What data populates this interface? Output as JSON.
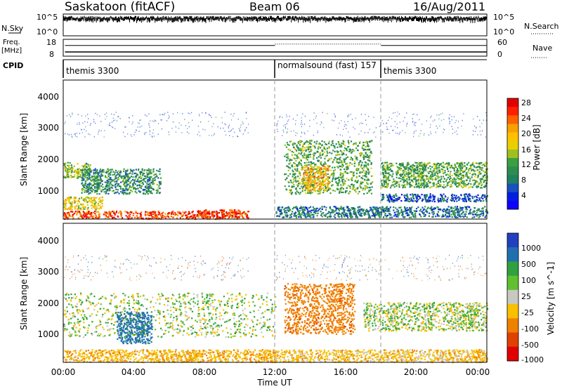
{
  "header": {
    "title": "Saskatoon (fitACF)",
    "beam": "Beam 06",
    "date": "16/Aug/2011"
  },
  "nsky_panel": {
    "left_label": "N.Sky",
    "left_ticks": [
      "10^5",
      "10^0"
    ],
    "right_ticks": [
      "10^5",
      "10^0"
    ],
    "right_label": "N.Search"
  },
  "freq_panel": {
    "label_line1": "Freq.",
    "label_line2": "[MHz]",
    "left_ticks": [
      "18",
      "8"
    ],
    "right_ticks": [
      "60",
      "0"
    ],
    "right_label": "Nave"
  },
  "cpid_panel": {
    "label": "CPID",
    "segments": [
      {
        "start_hour": 0,
        "text": "themis 3300"
      },
      {
        "start_hour": 12,
        "text": "normalsound (fast) 157"
      },
      {
        "start_hour": 18,
        "text": "themis 3300"
      }
    ]
  },
  "power_panel": {
    "ylabel": "Slant Range [km]",
    "yticks": [
      "4000",
      "3000",
      "2000",
      "1000"
    ],
    "colorbar_label": "Power [dB]",
    "colorbar_ticks": [
      "28",
      "24",
      "20",
      "16",
      "12",
      "8",
      "4"
    ],
    "colorbar_colors": [
      "#e00000",
      "#ff2000",
      "#ff6000",
      "#f7a000",
      "#ffc000",
      "#e8d000",
      "#a0c020",
      "#3aa040",
      "#2e8c50",
      "#208060",
      "#1a50c0",
      "#0020e0",
      "#1000ff"
    ]
  },
  "velocity_panel": {
    "ylabel": "Slant Range [km]",
    "yticks": [
      "4000",
      "3000",
      "2000",
      "1000"
    ],
    "colorbar_label": "Velocity [m s^-1]",
    "colorbar_ticks": [
      "1000",
      "500",
      "100",
      "25",
      "-25",
      "-100",
      "-500",
      "-1000"
    ],
    "colorbar_colors": [
      "#2040c0",
      "#2070b0",
      "#30a040",
      "#60c030",
      "#c8c8c0",
      "#f8c000",
      "#f08000",
      "#e04000",
      "#e00000"
    ]
  },
  "time_axis": {
    "xlabel": "Time UT",
    "ticks": [
      "00:00",
      "04:00",
      "08:00",
      "12:00",
      "16:00",
      "20:00",
      "00:00"
    ]
  },
  "chart_data": {
    "type": "heatmap",
    "title": "Saskatoon (fitACF)",
    "subtitle": "Beam 06",
    "date": "16/Aug/2011",
    "xlabel": "Time UT",
    "ylabel": "Slant Range [km]",
    "x_range_hours": [
      0,
      24
    ],
    "y_range_km": [
      180,
      4600
    ],
    "cpid_changes_hours": [
      12,
      18
    ],
    "panels": [
      {
        "name": "Power",
        "unit": "dB",
        "colorbar_range": [
          0,
          30
        ],
        "regions": [
          {
            "t0": 0.0,
            "t1": 10.5,
            "r0": 200,
            "r1": 450,
            "value": 26
          },
          {
            "t0": 0.0,
            "t1": 2.2,
            "r0": 500,
            "r1": 900,
            "value": 18
          },
          {
            "t0": 0.0,
            "t1": 1.5,
            "r0": 1500,
            "r1": 2000,
            "value": 14
          },
          {
            "t0": 1.0,
            "t1": 5.5,
            "r0": 1000,
            "r1": 1800,
            "value": 10
          },
          {
            "t0": 7.5,
            "t1": 10.0,
            "r0": 250,
            "r1": 500,
            "value": 27
          },
          {
            "t0": 12.5,
            "t1": 17.5,
            "r0": 1000,
            "r1": 2700,
            "value": 12
          },
          {
            "t0": 13.5,
            "t1": 15.0,
            "r0": 1100,
            "r1": 1900,
            "value": 20
          },
          {
            "t0": 18.0,
            "t1": 24.0,
            "r0": 1200,
            "r1": 2000,
            "value": 12
          },
          {
            "t0": 18.0,
            "t1": 24.0,
            "r0": 750,
            "r1": 1000,
            "value": 6
          },
          {
            "t0": 12.0,
            "t1": 24.0,
            "r0": 250,
            "r1": 600,
            "value": 8
          }
        ]
      },
      {
        "name": "Velocity",
        "unit": "m s^-1",
        "colorbar_range": [
          -1000,
          1000
        ],
        "regions": [
          {
            "t0": 0.0,
            "t1": 12.0,
            "r0": 200,
            "r1": 600,
            "value": -80
          },
          {
            "t0": 0.0,
            "t1": 12.0,
            "r0": 1000,
            "r1": 2400,
            "value": 0
          },
          {
            "t0": 3.0,
            "t1": 5.0,
            "r0": 800,
            "r1": 1800,
            "value": 150
          },
          {
            "t0": 12.5,
            "t1": 16.5,
            "r0": 1100,
            "r1": 2700,
            "value": -450
          },
          {
            "t0": 17.0,
            "t1": 24.0,
            "r0": 1200,
            "r1": 2100,
            "value": 0
          },
          {
            "t0": 12.0,
            "t1": 24.0,
            "r0": 200,
            "r1": 600,
            "value": -60
          }
        ]
      }
    ],
    "nsky": {
      "scale": "log",
      "range": [
        1,
        100000
      ],
      "typical_level": 20000
    },
    "frequency_mhz": {
      "range": [
        8,
        18
      ],
      "typical": 10.5
    },
    "nave": {
      "range": [
        0,
        60
      ],
      "typical": 38
    }
  }
}
